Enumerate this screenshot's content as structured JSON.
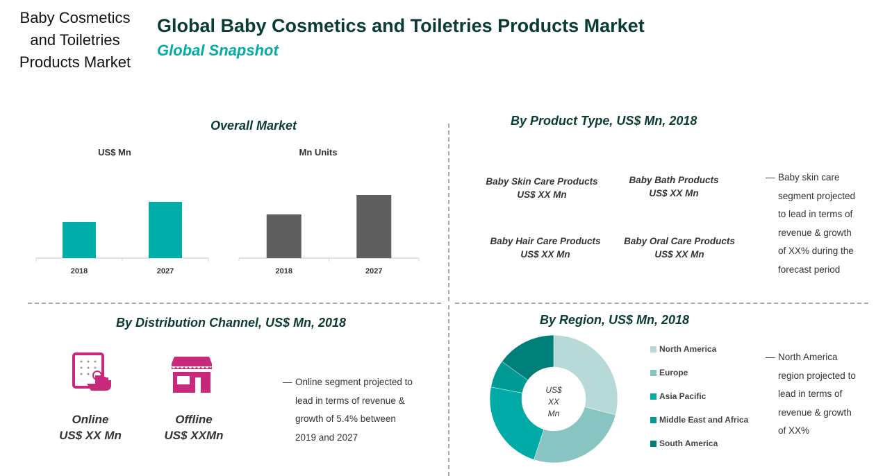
{
  "side_title": [
    "Baby Cosmetics",
    "and Toiletries",
    "Products Market"
  ],
  "title": "Global Baby Cosmetics and Toiletries Products Market",
  "subtitle": "Global Snapshot",
  "overall": {
    "heading": "Overall Market"
  },
  "product": {
    "heading": "By Product Type, US$ Mn, 2018",
    "items": [
      {
        "name": "Baby Skin Care Products",
        "value": "US$ XX Mn"
      },
      {
        "name": "Baby  Bath Products",
        "value": "US$ XX Mn"
      },
      {
        "name": "Baby Hair Care Products",
        "value": "US$ XX Mn"
      },
      {
        "name": "Baby Oral Care Products",
        "value": "US$ XX Mn"
      }
    ],
    "note": [
      "—",
      "Baby skin care",
      "segment projected",
      "to lead in terms of",
      "revenue & growth",
      "of XX% during the",
      "forecast period"
    ]
  },
  "distribution": {
    "heading": "By Distribution  Channel, US$ Mn, 2018",
    "channels": [
      {
        "name": "Online",
        "value": "US$ XX Mn",
        "icon": "touch-tablet-icon"
      },
      {
        "name": "Offline",
        "value": "US$ XXMn",
        "icon": "storefront-icon"
      }
    ],
    "icon_color": "#c8297a",
    "note": [
      "—",
      "Online segment projected to",
      "lead in terms of revenue &",
      "growth of 5.4% between",
      "2019  and 2027"
    ]
  },
  "region": {
    "heading": "By Region, US$ Mn, 2018",
    "center": [
      "US$",
      "XX",
      "Mn"
    ],
    "note": [
      "—",
      "North America",
      "region projected to",
      "lead in terms of",
      "revenue & growth",
      "of XX%"
    ]
  },
  "chart_data": [
    {
      "type": "bar",
      "title": "US$ Mn",
      "categories": [
        "2018",
        "2027"
      ],
      "values": [
        52,
        81
      ],
      "color": "#00aca7",
      "grid": false
    },
    {
      "type": "bar",
      "title": "Mn Units",
      "categories": [
        "2018",
        "2027"
      ],
      "values": [
        63,
        91
      ],
      "color": "#5f5f5f",
      "grid": false
    },
    {
      "type": "pie",
      "donut": true,
      "categories": [
        "North America",
        "Europe",
        "Asia Pacific",
        "Middle East and Africa",
        "South America"
      ],
      "values": [
        29,
        26,
        23,
        7,
        15
      ],
      "colors": [
        "#b7d9d8",
        "#88c4c2",
        "#00aba7",
        "#009b94",
        "#007f78"
      ],
      "legend": "right"
    }
  ]
}
